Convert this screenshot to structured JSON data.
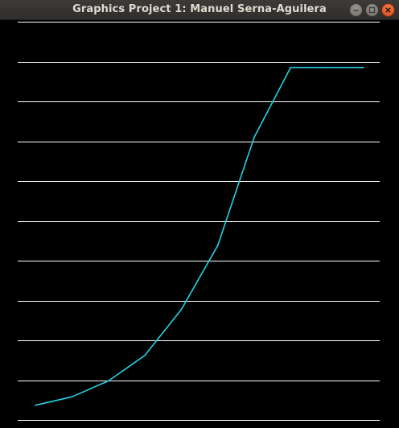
{
  "window": {
    "title": "Graphics Project 1: Manuel Serna-Aguilera",
    "controls": {
      "minimize_icon": "minimize-icon",
      "maximize_icon": "maximize-icon",
      "close_icon": "close-icon"
    }
  },
  "colors": {
    "background": "#000000",
    "gridline": "#ffffff",
    "curve": "#22d3e6",
    "close_button": "#e95420"
  },
  "chart_data": {
    "type": "line",
    "title": "",
    "xlabel": "",
    "ylabel": "",
    "grid": "horizontal",
    "ylim": [
      0,
      10
    ],
    "x": [
      0,
      1,
      2,
      3,
      4,
      5,
      6,
      7,
      8,
      9
    ],
    "series": [
      {
        "values": [
          0.37,
          0.58,
          0.98,
          1.62,
          2.77,
          4.38,
          7.1,
          8.85,
          8.85,
          8.85
        ]
      }
    ]
  }
}
